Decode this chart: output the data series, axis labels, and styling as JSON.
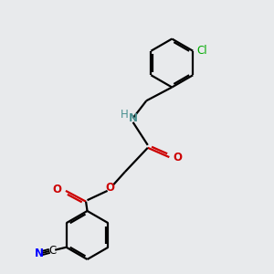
{
  "bg_color": "#e8eaec",
  "bond_color": "#000000",
  "O_color": "#cc0000",
  "N_color": "#0000ff",
  "N_teal_color": "#4a9090",
  "Cl_color": "#00aa00",
  "line_width": 1.6,
  "font_size": 8.5,
  "fig_size": [
    3.0,
    3.0
  ],
  "dpi": 100,
  "xlim": [
    0,
    10
  ],
  "ylim": [
    0,
    10
  ]
}
